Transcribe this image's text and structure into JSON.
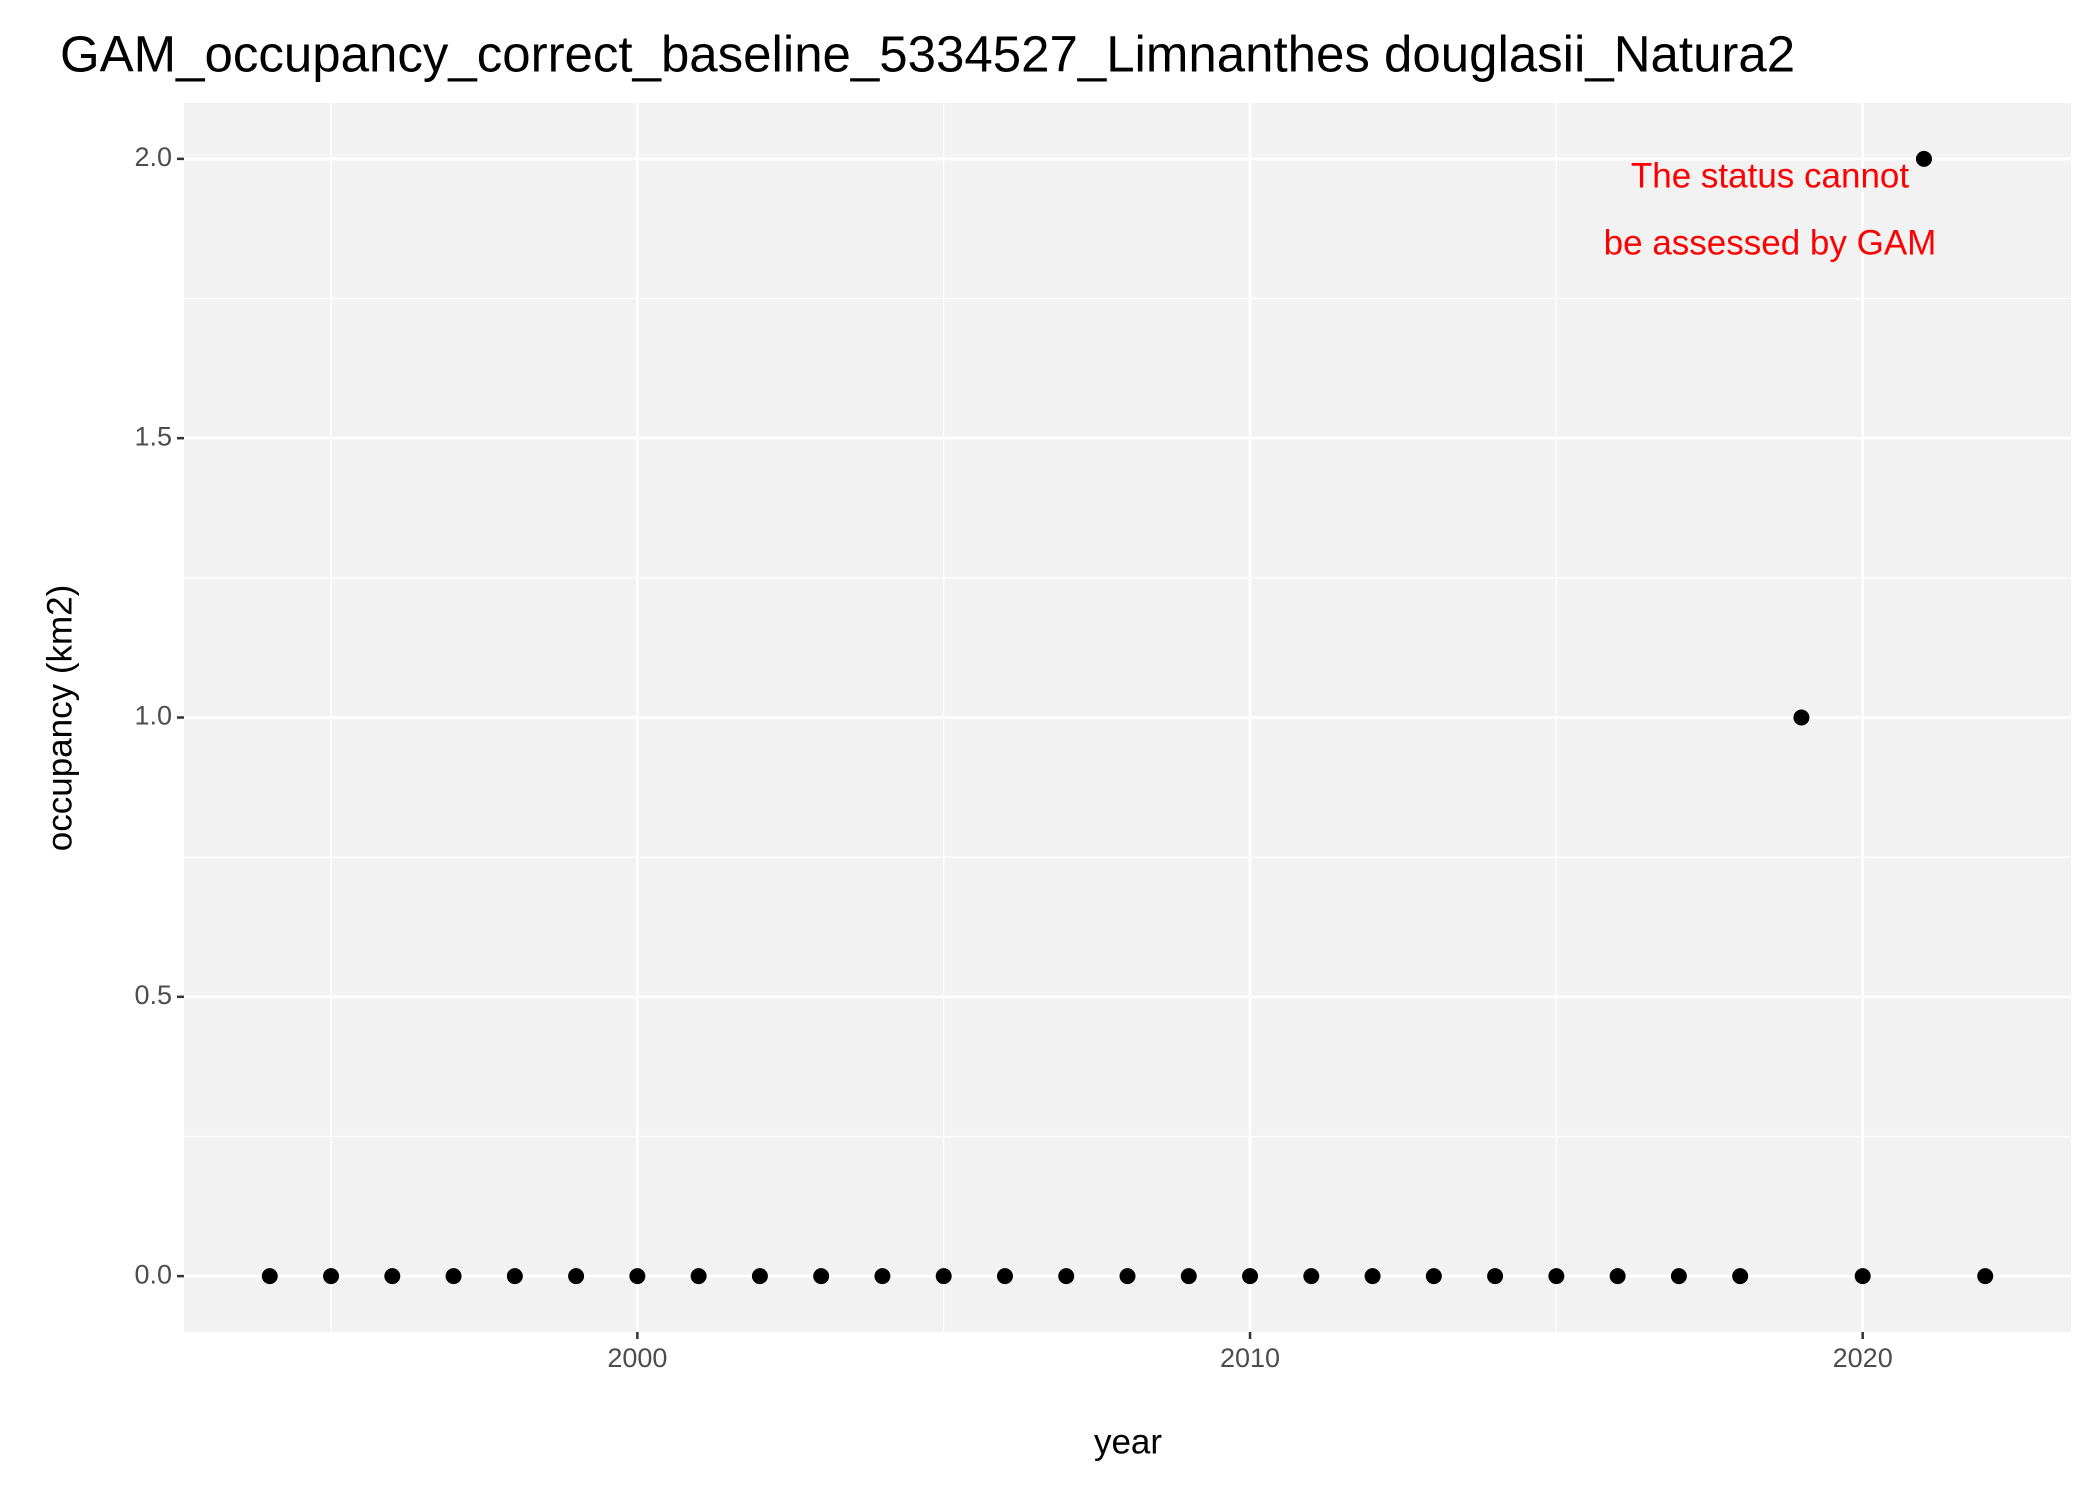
{
  "chart_data": {
    "type": "scatter",
    "title": "GAM_occupancy_correct_baseline_5334527_Limnanthes douglasii_Natura2",
    "x_label": "year",
    "y_label": "occupancy (km2)",
    "annotation": [
      "The status cannot",
      "be assessed by GAM"
    ],
    "annotation_color": "#ff0000",
    "x": [
      1994,
      1995,
      1996,
      1997,
      1998,
      1999,
      2000,
      2001,
      2002,
      2003,
      2004,
      2005,
      2006,
      2007,
      2008,
      2009,
      2010,
      2011,
      2012,
      2013,
      2014,
      2015,
      2016,
      2017,
      2018,
      2019,
      2020,
      2021,
      2022
    ],
    "values": [
      0,
      0,
      0,
      0,
      0,
      0,
      0,
      0,
      0,
      0,
      0,
      0,
      0,
      0,
      0,
      0,
      0,
      0,
      0,
      0,
      0,
      0,
      0,
      0,
      0,
      1,
      0,
      2,
      0
    ],
    "color": "#000000",
    "xlim": [
      1992.6,
      2023.4
    ],
    "xticks": [
      2000,
      2010,
      2020
    ],
    "ylim": [
      -0.1,
      2.1
    ],
    "yticks": [
      {
        "value": 0,
        "label": "0.0"
      },
      0.5,
      {
        "value": 1,
        "label": "1.0"
      },
      1.5,
      {
        "value": 2,
        "label": "2.0"
      }
    ],
    "grid": true
  }
}
